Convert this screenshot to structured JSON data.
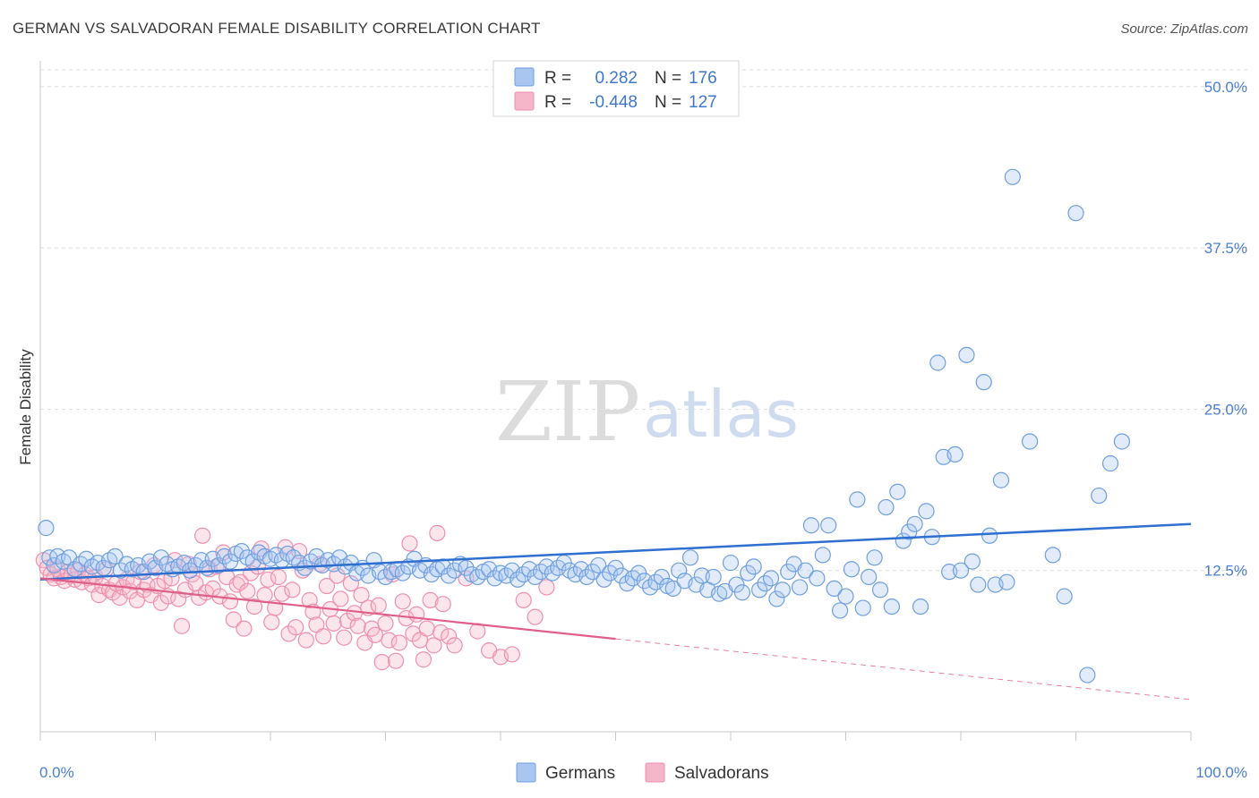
{
  "title": "GERMAN VS SALVADORAN FEMALE DISABILITY CORRELATION CHART",
  "source": "Source: ZipAtlas.com",
  "watermark": {
    "zip": "ZIP",
    "atlas": "atlas"
  },
  "legend": {
    "r_label": "R =",
    "n_label": "N =",
    "rows": [
      {
        "r": "0.282",
        "n": "176",
        "color": "#a9c6f0"
      },
      {
        "r": "-0.448",
        "n": "127",
        "color": "#f6b6c9"
      }
    ]
  },
  "chart_data": {
    "type": "scatter",
    "title": "GERMAN VS SALVADORAN FEMALE DISABILITY CORRELATION CHART",
    "xlabel": "",
    "ylabel": "Female Disability",
    "xlim": [
      0,
      100
    ],
    "ylim": [
      0,
      52
    ],
    "x_tick_labels": [
      "0.0%",
      "100.0%"
    ],
    "y_ticks": [
      12.5,
      25.0,
      37.5,
      50.0
    ],
    "y_tick_labels": [
      "12.5%",
      "25.0%",
      "37.5%",
      "50.0%"
    ],
    "grid": true,
    "legend_position": "top-center",
    "colors": {
      "germans": "#6f9fe0",
      "salvadorans": "#ef8fae",
      "germans_line": "#2f6fcf",
      "salvadorans_line": "#e05f8a"
    },
    "series": [
      {
        "name": "Germans",
        "r": 0.282,
        "n": 176,
        "trend": {
          "x": [
            0,
            100
          ],
          "y": [
            11.8,
            16.1
          ]
        },
        "points": [
          [
            0.5,
            15.8
          ],
          [
            0.8,
            13.5
          ],
          [
            1.2,
            12.9
          ],
          [
            1.5,
            13.6
          ],
          [
            2,
            13.2
          ],
          [
            2.5,
            13.5
          ],
          [
            3,
            12.6
          ],
          [
            3.5,
            13.0
          ],
          [
            4,
            13.4
          ],
          [
            4.5,
            12.8
          ],
          [
            5,
            13.1
          ],
          [
            5.5,
            12.7
          ],
          [
            6,
            13.3
          ],
          [
            6.5,
            13.6
          ],
          [
            7,
            12.5
          ],
          [
            7.5,
            13.0
          ],
          [
            8,
            12.6
          ],
          [
            8.5,
            12.9
          ],
          [
            9,
            12.4
          ],
          [
            9.5,
            13.2
          ],
          [
            10,
            12.7
          ],
          [
            10.5,
            13.5
          ],
          [
            11,
            13.0
          ],
          [
            11.5,
            12.6
          ],
          [
            12,
            12.8
          ],
          [
            12.5,
            13.1
          ],
          [
            13,
            12.5
          ],
          [
            13.5,
            12.9
          ],
          [
            14,
            13.3
          ],
          [
            14.5,
            12.7
          ],
          [
            15,
            13.4
          ],
          [
            15.5,
            12.9
          ],
          [
            16,
            13.6
          ],
          [
            16.5,
            13.2
          ],
          [
            17,
            13.8
          ],
          [
            17.5,
            14.0
          ],
          [
            18,
            13.5
          ],
          [
            18.5,
            13.2
          ],
          [
            19,
            13.9
          ],
          [
            19.5,
            13.6
          ],
          [
            20,
            13.4
          ],
          [
            20.5,
            13.7
          ],
          [
            21,
            13.3
          ],
          [
            21.5,
            13.8
          ],
          [
            22,
            13.5
          ],
          [
            22.5,
            13.1
          ],
          [
            23,
            12.7
          ],
          [
            23.5,
            13.2
          ],
          [
            24,
            13.6
          ],
          [
            24.5,
            12.9
          ],
          [
            25,
            13.3
          ],
          [
            25.5,
            13.0
          ],
          [
            26,
            13.5
          ],
          [
            26.5,
            12.8
          ],
          [
            27,
            13.1
          ],
          [
            27.5,
            12.3
          ],
          [
            28,
            12.7
          ],
          [
            28.5,
            12.1
          ],
          [
            29,
            13.3
          ],
          [
            29.5,
            12.4
          ],
          [
            30,
            12.0
          ],
          [
            30.5,
            12.4
          ],
          [
            31,
            12.6
          ],
          [
            31.5,
            12.3
          ],
          [
            32,
            12.8
          ],
          [
            32.5,
            13.4
          ],
          [
            33,
            12.5
          ],
          [
            33.5,
            12.9
          ],
          [
            34,
            12.2
          ],
          [
            34.5,
            12.6
          ],
          [
            35,
            12.8
          ],
          [
            35.5,
            12.1
          ],
          [
            36,
            12.5
          ],
          [
            36.5,
            13.0
          ],
          [
            37,
            12.7
          ],
          [
            37.5,
            12.2
          ],
          [
            38,
            12.0
          ],
          [
            38.5,
            12.4
          ],
          [
            39,
            12.6
          ],
          [
            39.5,
            11.9
          ],
          [
            40,
            12.3
          ],
          [
            40.5,
            12.1
          ],
          [
            41,
            12.5
          ],
          [
            41.5,
            11.8
          ],
          [
            42,
            12.2
          ],
          [
            42.5,
            12.6
          ],
          [
            43,
            12.0
          ],
          [
            43.5,
            12.4
          ],
          [
            44,
            12.8
          ],
          [
            44.5,
            12.3
          ],
          [
            45,
            12.7
          ],
          [
            45.5,
            13.1
          ],
          [
            46,
            12.5
          ],
          [
            46.5,
            12.2
          ],
          [
            47,
            12.6
          ],
          [
            47.5,
            12.0
          ],
          [
            48,
            12.4
          ],
          [
            48.5,
            12.9
          ],
          [
            49,
            11.8
          ],
          [
            49.5,
            12.3
          ],
          [
            50,
            12.7
          ],
          [
            50.5,
            12.1
          ],
          [
            51,
            11.5
          ],
          [
            51.5,
            11.9
          ],
          [
            52,
            12.3
          ],
          [
            52.5,
            11.7
          ],
          [
            53,
            11.2
          ],
          [
            53.5,
            11.6
          ],
          [
            54,
            12.0
          ],
          [
            54.5,
            11.3
          ],
          [
            55,
            11.1
          ],
          [
            55.5,
            12.5
          ],
          [
            56,
            11.7
          ],
          [
            56.5,
            13.5
          ],
          [
            57,
            11.4
          ],
          [
            57.5,
            12.1
          ],
          [
            58,
            11.0
          ],
          [
            58.5,
            12.0
          ],
          [
            59,
            10.7
          ],
          [
            59.5,
            10.9
          ],
          [
            60,
            13.1
          ],
          [
            60.5,
            11.4
          ],
          [
            61,
            10.8
          ],
          [
            61.5,
            12.3
          ],
          [
            62,
            12.8
          ],
          [
            62.5,
            11.0
          ],
          [
            63,
            11.5
          ],
          [
            63.5,
            11.9
          ],
          [
            64,
            10.3
          ],
          [
            64.5,
            11.0
          ],
          [
            65,
            12.4
          ],
          [
            65.5,
            13.0
          ],
          [
            66,
            11.2
          ],
          [
            66.5,
            12.5
          ],
          [
            67,
            16.0
          ],
          [
            67.5,
            11.9
          ],
          [
            68,
            13.7
          ],
          [
            68.5,
            16.0
          ],
          [
            69,
            11.1
          ],
          [
            69.5,
            9.4
          ],
          [
            70,
            10.5
          ],
          [
            70.5,
            12.6
          ],
          [
            71,
            18.0
          ],
          [
            71.5,
            9.6
          ],
          [
            72,
            12.0
          ],
          [
            72.5,
            13.5
          ],
          [
            73,
            11.0
          ],
          [
            73.5,
            17.4
          ],
          [
            74,
            9.7
          ],
          [
            74.5,
            18.6
          ],
          [
            75,
            14.8
          ],
          [
            75.5,
            15.5
          ],
          [
            76,
            16.1
          ],
          [
            76.5,
            9.7
          ],
          [
            77,
            17.1
          ],
          [
            77.5,
            15.1
          ],
          [
            78,
            28.6
          ],
          [
            78.5,
            21.3
          ],
          [
            79,
            12.4
          ],
          [
            79.5,
            21.5
          ],
          [
            80,
            12.5
          ],
          [
            80.5,
            29.2
          ],
          [
            81,
            13.2
          ],
          [
            81.5,
            11.4
          ],
          [
            82,
            27.1
          ],
          [
            82.5,
            15.2
          ],
          [
            83,
            11.4
          ],
          [
            83.5,
            19.5
          ],
          [
            84,
            11.6
          ],
          [
            84.5,
            43.0
          ],
          [
            86,
            22.5
          ],
          [
            88,
            13.7
          ],
          [
            89,
            10.5
          ],
          [
            90,
            40.2
          ],
          [
            91,
            4.4
          ],
          [
            92,
            18.3
          ],
          [
            93,
            20.8
          ],
          [
            94,
            22.5
          ]
        ]
      },
      {
        "name": "Salvadorans",
        "r": -0.448,
        "n": 127,
        "trend": {
          "x": [
            0,
            100
          ],
          "y": [
            11.9,
            2.5
          ],
          "solid_until_x": 50
        },
        "points": [
          [
            0.3,
            13.3
          ],
          [
            0.6,
            12.7
          ],
          [
            0.9,
            12.2
          ],
          [
            1.2,
            11.9
          ],
          [
            1.5,
            12.6
          ],
          [
            1.8,
            12.0
          ],
          [
            2.1,
            11.7
          ],
          [
            2.4,
            12.4
          ],
          [
            2.7,
            12.1
          ],
          [
            3.0,
            11.8
          ],
          [
            3.3,
            12.5
          ],
          [
            3.6,
            11.6
          ],
          [
            3.9,
            12.2
          ],
          [
            4.2,
            11.9
          ],
          [
            4.5,
            11.4
          ],
          [
            4.8,
            12.0
          ],
          [
            5.1,
            10.6
          ],
          [
            5.4,
            11.3
          ],
          [
            5.7,
            12.6
          ],
          [
            6.0,
            11.0
          ],
          [
            6.3,
            10.8
          ],
          [
            6.6,
            11.5
          ],
          [
            6.9,
            10.4
          ],
          [
            7.2,
            11.2
          ],
          [
            7.5,
            11.8
          ],
          [
            7.8,
            10.9
          ],
          [
            8.1,
            11.6
          ],
          [
            8.4,
            10.2
          ],
          [
            8.7,
            12.4
          ],
          [
            9.0,
            11.0
          ],
          [
            9.3,
            11.4
          ],
          [
            9.6,
            10.6
          ],
          [
            9.9,
            12.9
          ],
          [
            10.2,
            11.3
          ],
          [
            10.5,
            10.0
          ],
          [
            10.8,
            11.7
          ],
          [
            11.1,
            10.5
          ],
          [
            11.4,
            11.9
          ],
          [
            11.7,
            13.3
          ],
          [
            12.0,
            10.3
          ],
          [
            12.3,
            8.2
          ],
          [
            12.6,
            11.0
          ],
          [
            12.9,
            13.0
          ],
          [
            13.2,
            12.2
          ],
          [
            13.5,
            11.5
          ],
          [
            13.8,
            10.4
          ],
          [
            14.1,
            15.2
          ],
          [
            14.4,
            10.8
          ],
          [
            14.7,
            12.6
          ],
          [
            15.0,
            11.1
          ],
          [
            15.3,
            12.8
          ],
          [
            15.6,
            10.5
          ],
          [
            15.9,
            13.9
          ],
          [
            16.2,
            12.0
          ],
          [
            16.5,
            10.1
          ],
          [
            16.8,
            8.7
          ],
          [
            17.1,
            11.4
          ],
          [
            17.4,
            11.6
          ],
          [
            17.7,
            8.0
          ],
          [
            18.0,
            10.9
          ],
          [
            18.3,
            12.3
          ],
          [
            18.6,
            9.7
          ],
          [
            18.9,
            12.8
          ],
          [
            19.2,
            14.2
          ],
          [
            19.5,
            10.6
          ],
          [
            19.8,
            11.8
          ],
          [
            20.1,
            8.5
          ],
          [
            20.4,
            9.6
          ],
          [
            20.7,
            12.0
          ],
          [
            21.0,
            10.7
          ],
          [
            21.3,
            14.3
          ],
          [
            21.6,
            7.6
          ],
          [
            21.9,
            11.0
          ],
          [
            22.2,
            8.1
          ],
          [
            22.5,
            14.0
          ],
          [
            22.8,
            12.5
          ],
          [
            23.1,
            7.1
          ],
          [
            23.4,
            10.2
          ],
          [
            23.7,
            9.3
          ],
          [
            24.0,
            8.3
          ],
          [
            24.3,
            13.0
          ],
          [
            24.6,
            7.4
          ],
          [
            24.9,
            11.3
          ],
          [
            25.2,
            9.5
          ],
          [
            25.5,
            8.4
          ],
          [
            25.8,
            12.1
          ],
          [
            26.1,
            10.3
          ],
          [
            26.4,
            7.3
          ],
          [
            26.7,
            8.6
          ],
          [
            27.0,
            11.5
          ],
          [
            27.3,
            9.2
          ],
          [
            27.6,
            8.2
          ],
          [
            27.9,
            10.6
          ],
          [
            28.2,
            6.9
          ],
          [
            28.5,
            9.6
          ],
          [
            28.8,
            8.0
          ],
          [
            29.1,
            7.5
          ],
          [
            29.4,
            9.8
          ],
          [
            29.7,
            5.4
          ],
          [
            30.0,
            8.4
          ],
          [
            30.3,
            7.1
          ],
          [
            30.6,
            12.2
          ],
          [
            30.9,
            5.5
          ],
          [
            31.2,
            6.9
          ],
          [
            31.5,
            10.1
          ],
          [
            31.8,
            8.8
          ],
          [
            32.1,
            14.6
          ],
          [
            32.4,
            7.6
          ],
          [
            32.7,
            9.1
          ],
          [
            33.0,
            7.1
          ],
          [
            33.3,
            5.6
          ],
          [
            33.6,
            8.0
          ],
          [
            33.9,
            10.2
          ],
          [
            34.2,
            6.7
          ],
          [
            34.5,
            15.4
          ],
          [
            34.8,
            7.7
          ],
          [
            35.0,
            9.9
          ],
          [
            35.5,
            7.4
          ],
          [
            36.0,
            6.7
          ],
          [
            37.0,
            11.9
          ],
          [
            38.0,
            7.8
          ],
          [
            39.0,
            6.3
          ],
          [
            40.0,
            5.8
          ],
          [
            41.0,
            6.0
          ],
          [
            42.0,
            10.2
          ],
          [
            43.0,
            8.9
          ],
          [
            44.0,
            11.2
          ]
        ]
      }
    ]
  },
  "bottom_legend": [
    {
      "label": "Germans",
      "color": "#a9c6f0"
    },
    {
      "label": "Salvadorans",
      "color": "#f6b6c9"
    }
  ]
}
